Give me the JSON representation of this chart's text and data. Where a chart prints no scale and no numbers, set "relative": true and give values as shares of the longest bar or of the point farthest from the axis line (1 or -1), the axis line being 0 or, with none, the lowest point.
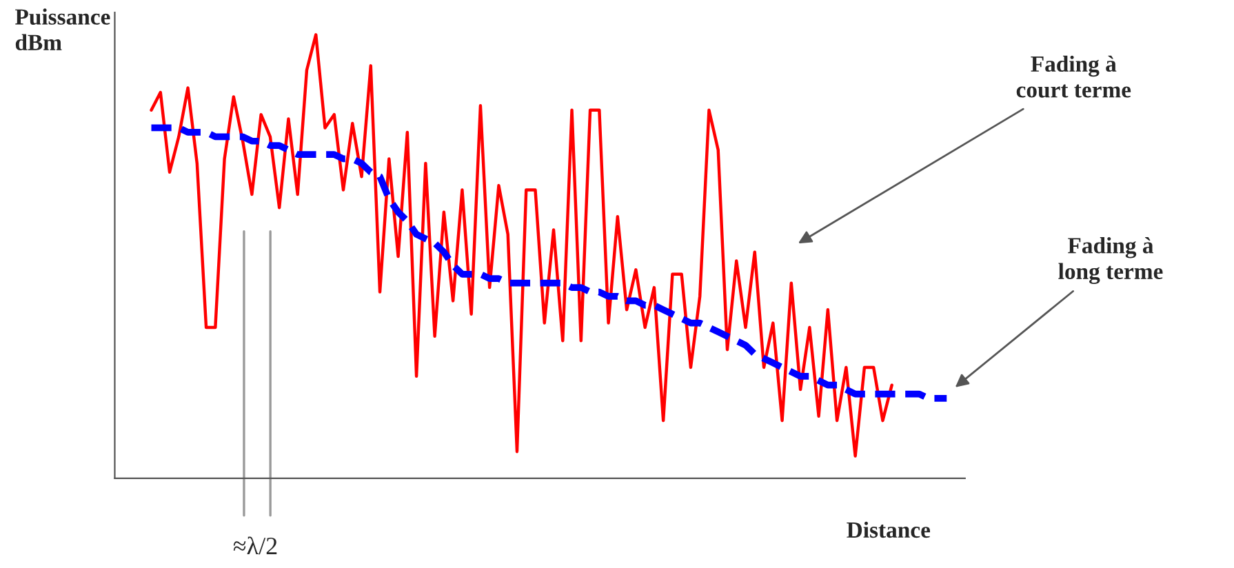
{
  "chart_data": {
    "type": "line",
    "relative": true,
    "ylabel": "Puissance\ndBm",
    "xlabel": "Distance",
    "categories": [
      null,
      null,
      null,
      null,
      null,
      null,
      null,
      null,
      null,
      null,
      null,
      null,
      null,
      null,
      null,
      null,
      null,
      null,
      null,
      null,
      null,
      null,
      null,
      null,
      null,
      null,
      null,
      null,
      null,
      null,
      null,
      null,
      null,
      null,
      null,
      null,
      null,
      null,
      null,
      null,
      null,
      null,
      null,
      null,
      null,
      null,
      null,
      null,
      null,
      null,
      null,
      null,
      null,
      null,
      null,
      null,
      null,
      null,
      null,
      null,
      null,
      null,
      null,
      null,
      null,
      null,
      null,
      null,
      null,
      null,
      null,
      null,
      null,
      null,
      null,
      null,
      null,
      null,
      null,
      null,
      null,
      null,
      null,
      null,
      null,
      null,
      null,
      null
    ],
    "series": [
      {
        "color": "#ff0000",
        "line_style": "solid",
        "values": [
          0.83,
          0.87,
          0.69,
          0.77,
          0.88,
          0.71,
          0.34,
          0.34,
          0.72,
          0.86,
          0.76,
          0.64,
          0.82,
          0.77,
          0.61,
          0.81,
          0.64,
          0.92,
          1.0,
          0.79,
          0.82,
          0.65,
          0.8,
          0.68,
          0.93,
          0.42,
          0.72,
          0.5,
          0.78,
          0.23,
          0.71,
          0.32,
          0.6,
          0.4,
          0.65,
          0.37,
          0.84,
          0.43,
          0.66,
          0.55,
          0.06,
          0.65,
          0.65,
          0.35,
          0.56,
          0.31,
          0.83,
          0.31,
          0.83,
          0.83,
          0.35,
          0.59,
          0.38,
          0.47,
          0.34,
          0.43,
          0.13,
          0.46,
          0.46,
          0.25,
          0.41,
          0.83,
          0.74,
          0.29,
          0.49,
          0.34,
          0.51,
          0.25,
          0.35,
          0.13,
          0.44,
          0.2,
          0.34,
          0.14,
          0.38,
          0.13,
          0.25,
          0.05,
          0.25,
          0.25,
          0.13,
          0.21,
          null,
          null,
          null,
          null,
          null,
          null
        ]
      },
      {
        "color": "#0000ff",
        "line_style": "dashed",
        "values": [
          0.79,
          0.79,
          0.79,
          0.79,
          0.78,
          0.78,
          0.78,
          0.77,
          0.77,
          0.77,
          0.77,
          0.76,
          0.76,
          0.75,
          0.75,
          0.74,
          0.73,
          0.73,
          0.73,
          0.73,
          0.73,
          0.72,
          0.72,
          0.71,
          0.69,
          0.68,
          0.63,
          0.6,
          0.58,
          0.55,
          0.54,
          0.53,
          0.51,
          0.48,
          0.46,
          0.46,
          0.46,
          0.45,
          0.45,
          0.44,
          0.44,
          0.44,
          0.44,
          0.44,
          0.44,
          0.44,
          0.43,
          0.43,
          0.42,
          0.42,
          0.41,
          0.41,
          0.4,
          0.4,
          0.39,
          0.39,
          0.38,
          0.37,
          0.36,
          0.35,
          0.35,
          0.34,
          0.33,
          0.32,
          0.31,
          0.3,
          0.28,
          0.27,
          0.26,
          0.25,
          0.24,
          0.23,
          0.23,
          0.22,
          0.21,
          0.21,
          0.2,
          0.19,
          0.19,
          0.19,
          0.19,
          0.19,
          0.19,
          0.19,
          0.19,
          0.18,
          0.18,
          0.18
        ]
      }
    ],
    "annotations": [
      "Fading à\ncourt terme",
      "Fading à\nlong terme",
      "≈λ/2"
    ]
  }
}
